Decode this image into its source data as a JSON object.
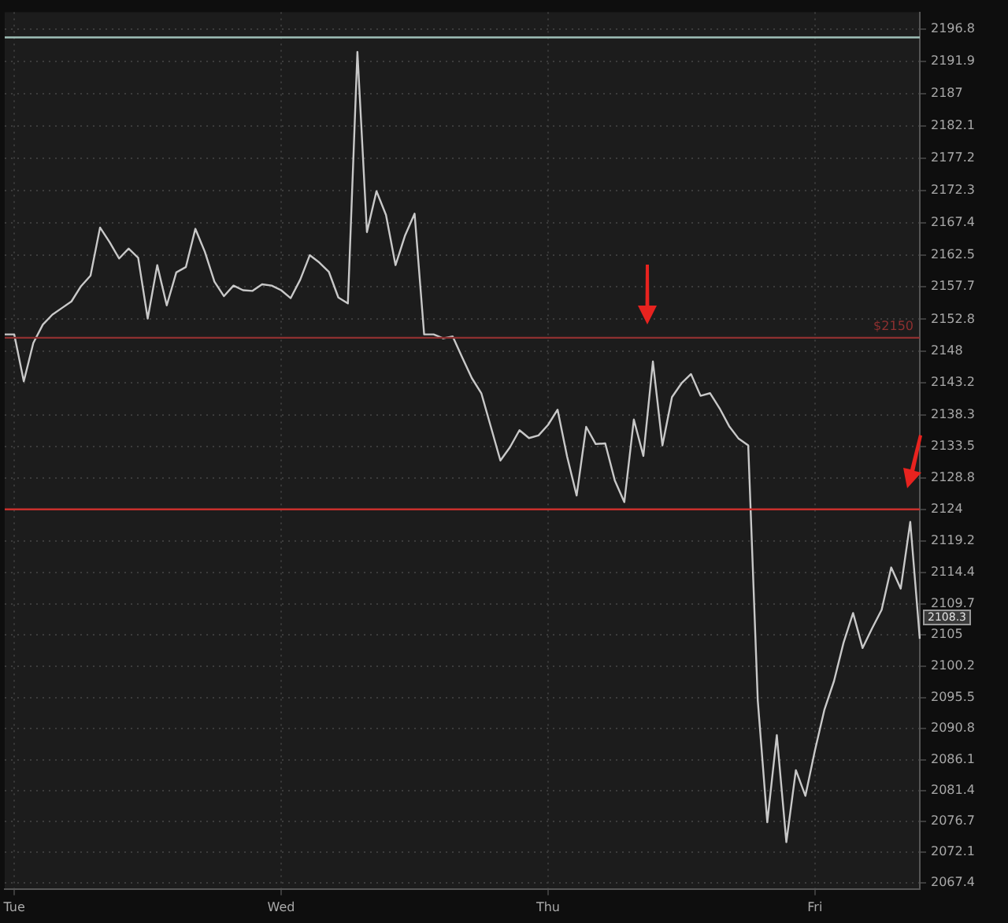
{
  "chart_data": {
    "type": "line",
    "categories": [
      null,
      "Tue",
      null,
      null,
      null,
      null,
      null,
      null,
      null,
      null,
      null,
      null,
      null,
      null,
      null,
      null,
      null,
      null,
      null,
      null,
      null,
      null,
      null,
      null,
      null,
      null,
      null,
      null,
      null,
      "Wed",
      null,
      null,
      null,
      null,
      null,
      null,
      null,
      null,
      null,
      null,
      null,
      null,
      null,
      null,
      null,
      null,
      null,
      null,
      null,
      null,
      null,
      null,
      null,
      null,
      null,
      null,
      null,
      "Thu",
      null,
      null,
      null,
      null,
      null,
      null,
      null,
      null,
      null,
      null,
      null,
      null,
      null,
      null,
      null,
      null,
      null,
      null,
      null,
      null,
      null,
      null,
      null,
      null,
      null,
      null,
      null,
      "Fri",
      null,
      null,
      null,
      null,
      null,
      null,
      null,
      null,
      null,
      null,
      null
    ],
    "series": [
      {
        "color": "#c8c8c8",
        "values": [
          2150.5,
          2150.5,
          2143.4,
          2149.2,
          2152.0,
          2153.5,
          2154.5,
          2155.5,
          2157.8,
          2159.4,
          2166.7,
          2164.5,
          2162.0,
          2163.5,
          2162.1,
          2152.9,
          2161.0,
          2154.9,
          2159.9,
          2160.7,
          2166.5,
          2163.0,
          2158.5,
          2156.3,
          2157.9,
          2157.2,
          2157.1,
          2158.1,
          2157.9,
          2157.2,
          2156.0,
          2158.8,
          2162.5,
          2161.4,
          2160.0,
          2156.1,
          2155.2,
          2193.3,
          2166.0,
          2172.2,
          2168.6,
          2161.0,
          2165.5,
          2168.8,
          2150.5,
          2150.5,
          2149.9,
          2150.2,
          2147.0,
          2143.9,
          2141.6,
          2136.5,
          2131.4,
          2133.4,
          2136.0,
          2134.8,
          2135.2,
          2136.8,
          2139.1,
          2132.0,
          2126.1,
          2136.5,
          2133.9,
          2134.0,
          2128.4,
          2125.1,
          2137.6,
          2132.1,
          2146.4,
          2133.7,
          2141.0,
          2143.1,
          2144.5,
          2141.2,
          2141.6,
          2139.3,
          2136.6,
          2134.7,
          2133.7,
          2095.1,
          2076.6,
          2089.8,
          2073.6,
          2084.5,
          2080.6,
          2087.5,
          2093.7,
          2098.0,
          2103.8,
          2108.3,
          2103.0,
          2106.0,
          2108.8,
          2115.2,
          2112.0,
          2122.1,
          2104.4
        ]
      }
    ],
    "ylim": [
      2066.5,
      2199.3
    ],
    "yticks": [
      2196.8,
      2191.9,
      2187,
      2182.1,
      2177.2,
      2172.3,
      2167.4,
      2162.5,
      2157.7,
      2152.8,
      2148,
      2143.2,
      2138.3,
      2133.5,
      2128.8,
      2124,
      2119.2,
      2114.4,
      2109.7,
      2105,
      2100.2,
      2095.5,
      2090.8,
      2086.1,
      2081.4,
      2076.7,
      2072.1,
      2067.4
    ],
    "ref_lines": [
      {
        "axis": "y",
        "value": 2195.5,
        "color": "#9fc0b8"
      },
      {
        "axis": "y",
        "value": 2150,
        "label": "$2150",
        "color": "#8e3030"
      },
      {
        "axis": "y",
        "value": 2124,
        "color": "#c8302c"
      }
    ],
    "annotations": [
      "2108.3"
    ],
    "grid": true,
    "legend": false,
    "marker": "none",
    "line_style": "solid"
  }
}
